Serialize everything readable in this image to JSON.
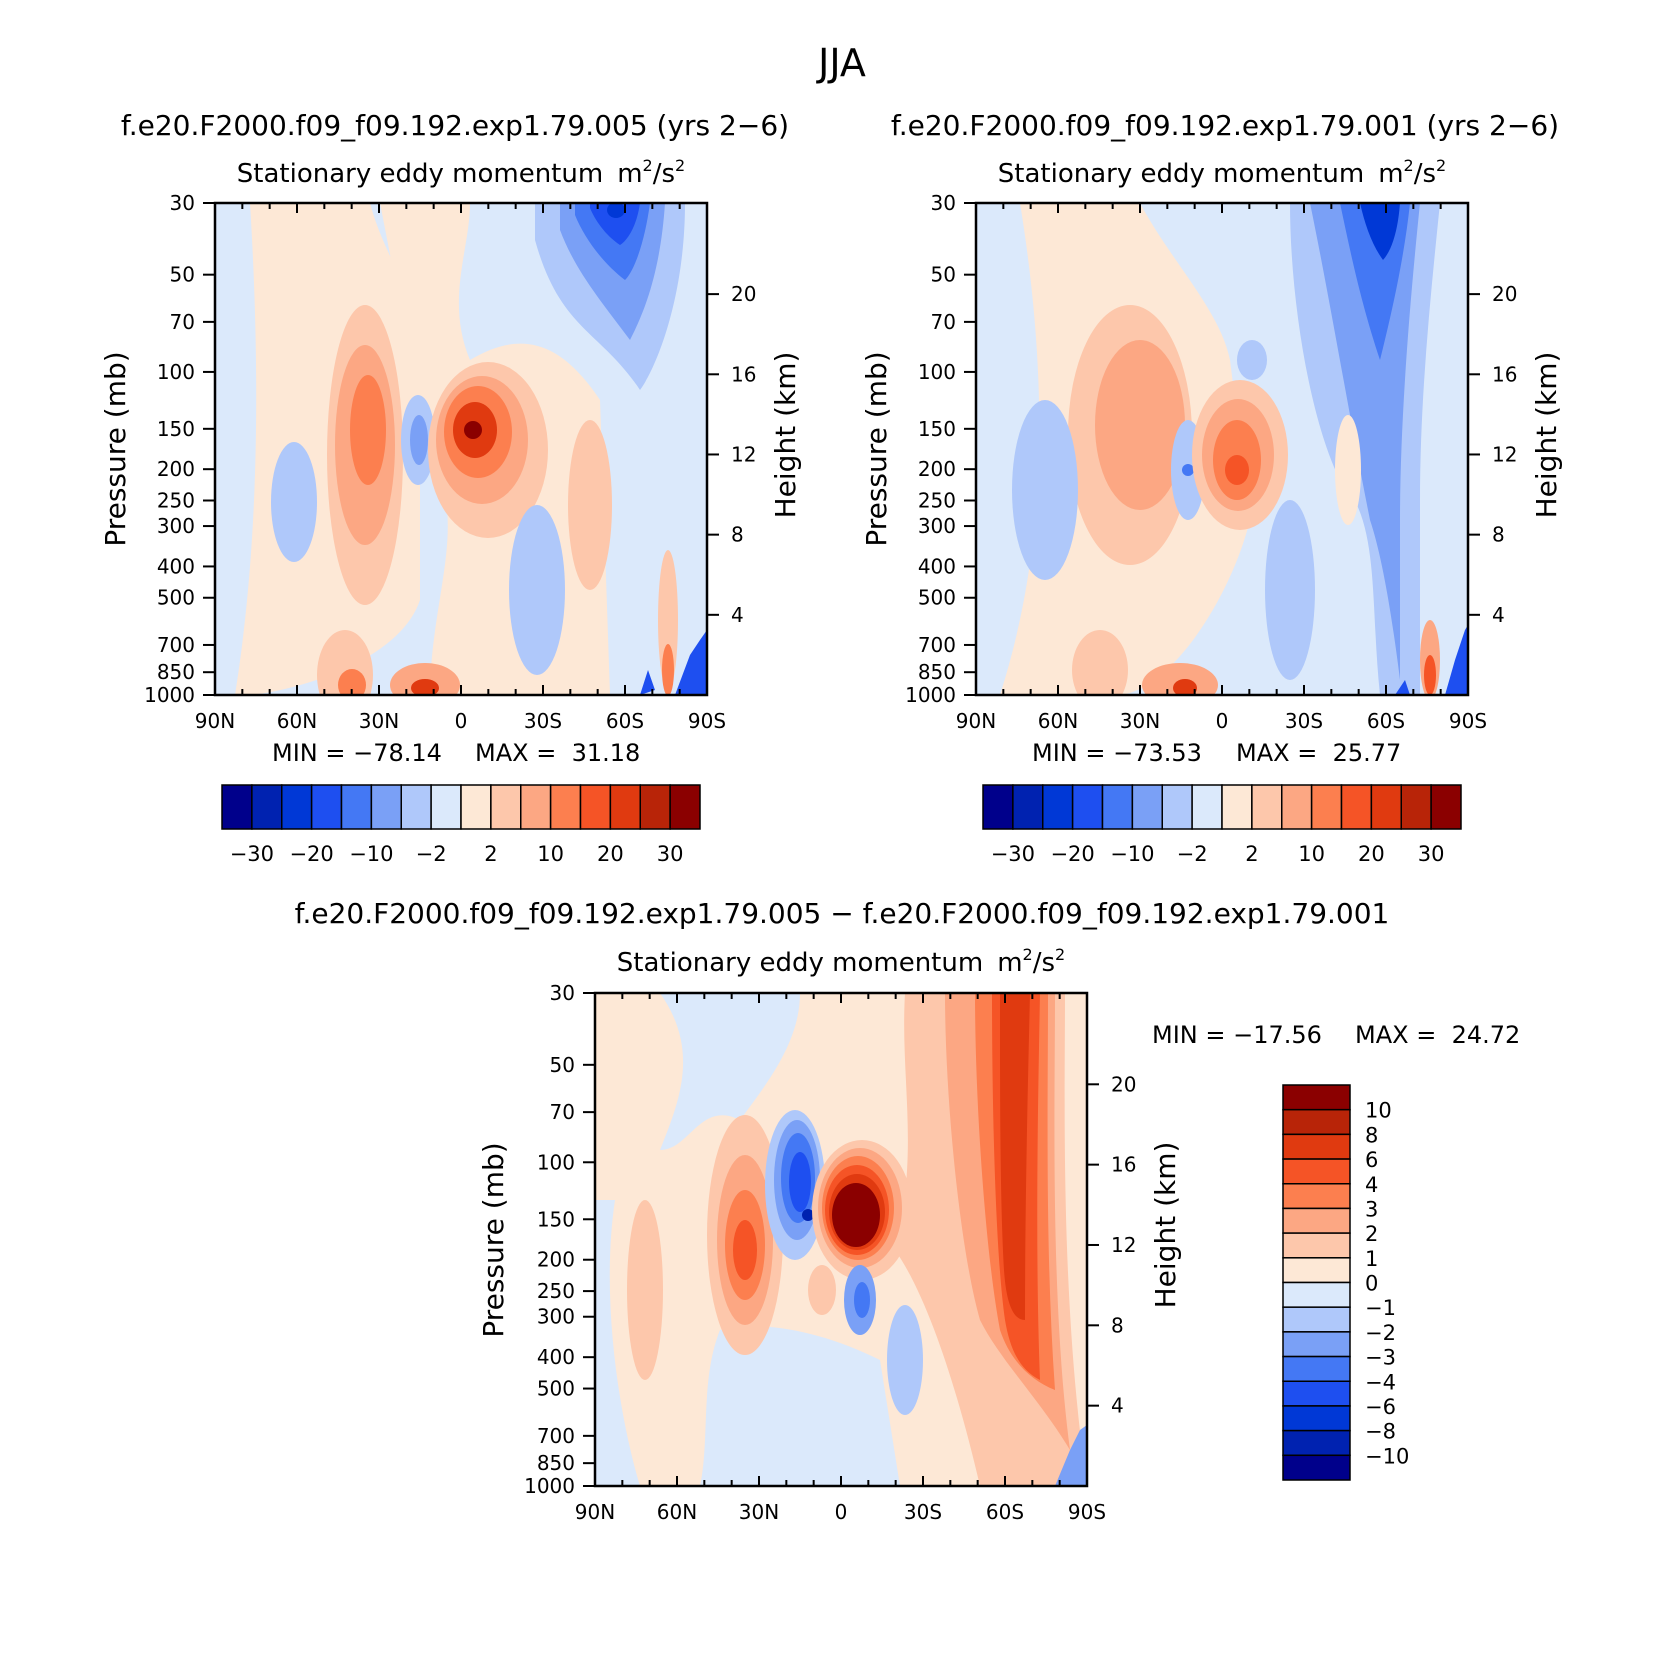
{
  "title": "JJA",
  "chart_data": [
    {
      "type": "heatmap",
      "case_title": "f.e20.F2000.f09_f09.192.exp1.79.005 (yrs 2−6)",
      "title": "Stationary eddy momentum",
      "units": "m²/s²",
      "units_base": "m",
      "units_mid": "/s",
      "units_sup": "2",
      "xlabel": "",
      "ylabel": "Pressure (mb)",
      "ylabel_right": "Height (km)",
      "x_ticks": [
        "90N",
        "60N",
        "30N",
        "0",
        "30S",
        "60S",
        "90S"
      ],
      "x_range": [
        90,
        -90
      ],
      "y_ticks": [
        "30",
        "50",
        "70",
        "100",
        "150",
        "200",
        "250",
        "300",
        "400",
        "500",
        "700",
        "850",
        "1000"
      ],
      "y_range": [
        30,
        1000
      ],
      "y_right_ticks": [
        "20",
        "16",
        "12",
        "8",
        "4"
      ],
      "min_label": "MIN = −78.14",
      "max_label": "MAX =  31.18",
      "min": -78.14,
      "max": 31.18,
      "colorbar_labels": [
        "−30",
        "−20",
        "−10",
        "−2",
        "2",
        "10",
        "20",
        "30"
      ]
    },
    {
      "type": "heatmap",
      "case_title": "f.e20.F2000.f09_f09.192.exp1.79.001 (yrs 2−6)",
      "title": "Stationary eddy momentum",
      "units": "m²/s²",
      "units_base": "m",
      "units_mid": "/s",
      "units_sup": "2",
      "xlabel": "",
      "ylabel": "Pressure (mb)",
      "ylabel_right": "Height (km)",
      "x_ticks": [
        "90N",
        "60N",
        "30N",
        "0",
        "30S",
        "60S",
        "90S"
      ],
      "x_range": [
        90,
        -90
      ],
      "y_ticks": [
        "30",
        "50",
        "70",
        "100",
        "150",
        "200",
        "250",
        "300",
        "400",
        "500",
        "700",
        "850",
        "1000"
      ],
      "y_range": [
        30,
        1000
      ],
      "y_right_ticks": [
        "20",
        "16",
        "12",
        "8",
        "4"
      ],
      "min_label": "MIN = −73.53",
      "max_label": "MAX =  25.77",
      "min": -73.53,
      "max": 25.77,
      "colorbar_labels": [
        "−30",
        "−20",
        "−10",
        "−2",
        "2",
        "10",
        "20",
        "30"
      ]
    },
    {
      "type": "heatmap",
      "case_title": "f.e20.F2000.f09_f09.192.exp1.79.005 − f.e20.F2000.f09_f09.192.exp1.79.001",
      "title": "Stationary eddy momentum",
      "units": "m²/s²",
      "units_base": "m",
      "units_mid": "/s",
      "units_sup": "2",
      "xlabel": "",
      "ylabel": "Pressure (mb)",
      "ylabel_right": "Height (km)",
      "x_ticks": [
        "90N",
        "60N",
        "30N",
        "0",
        "30S",
        "60S",
        "90S"
      ],
      "x_range": [
        90,
        -90
      ],
      "y_ticks": [
        "30",
        "50",
        "70",
        "100",
        "150",
        "200",
        "250",
        "300",
        "400",
        "500",
        "700",
        "850",
        "1000"
      ],
      "y_range": [
        30,
        1000
      ],
      "y_right_ticks": [
        "20",
        "16",
        "12",
        "8",
        "4"
      ],
      "min_label": "MIN = −17.56",
      "max_label": "MAX =  24.72",
      "min": -17.56,
      "max": 24.72,
      "colorbar_labels": [
        "10",
        "8",
        "6",
        "4",
        "3",
        "2",
        "1",
        "0",
        "−1",
        "−2",
        "−3",
        "−4",
        "−6",
        "−8",
        "−10"
      ]
    }
  ],
  "colors": {
    "blues": [
      "#00008b",
      "#0022b0",
      "#0038d6",
      "#1e4ff0",
      "#4478f4",
      "#7aa0f6",
      "#afc8fa",
      "#dbe9fb"
    ],
    "reds": [
      "#fde8d6",
      "#fdc7ab",
      "#fca783",
      "#fc7f4f",
      "#f55426",
      "#e03a10",
      "#b82408",
      "#8b0000"
    ]
  }
}
